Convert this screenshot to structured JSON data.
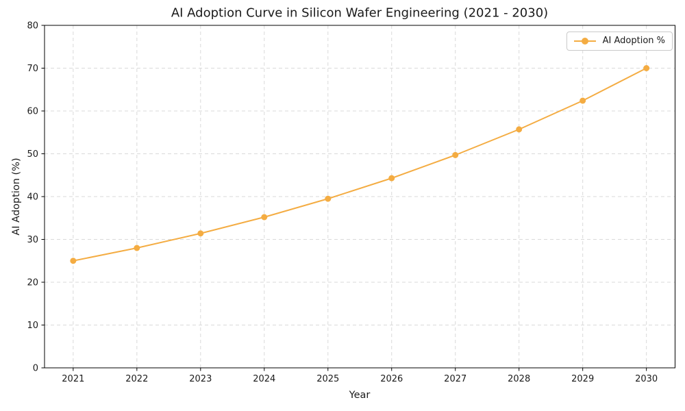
{
  "title": "AI Adoption Curve in Silicon Wafer Engineering (2021 - 2030)",
  "axes": {
    "xlabel": "Year",
    "ylabel": "AI Adoption (%)"
  },
  "legend": {
    "position": "upper right",
    "items": [
      {
        "label": "AI Adoption %",
        "color": "#F4AC42",
        "marker": "circle"
      }
    ]
  },
  "colors": {
    "line": "#F4AC42",
    "grid": "#D9D9D9",
    "spine": "#000000",
    "text": "#1a1a1a",
    "background": "#ffffff"
  },
  "chart_data": {
    "type": "line",
    "title": "AI Adoption Curve in Silicon Wafer Engineering (2021 - 2030)",
    "xlabel": "Year",
    "ylabel": "AI Adoption (%)",
    "x": [
      2021,
      2022,
      2023,
      2024,
      2025,
      2026,
      2027,
      2028,
      2029,
      2030
    ],
    "series": [
      {
        "name": "AI Adoption %",
        "values": [
          25.0,
          28.0,
          31.4,
          35.2,
          39.5,
          44.3,
          49.7,
          55.7,
          62.4,
          70.0
        ],
        "color": "#F4AC42",
        "marker": "circle",
        "line_width": 2
      }
    ],
    "ylim": [
      0,
      80
    ],
    "yticks": [
      0,
      10,
      20,
      30,
      40,
      50,
      60,
      70,
      80
    ],
    "grid": true,
    "grid_style": "dashed",
    "legend_position": "upper right"
  }
}
